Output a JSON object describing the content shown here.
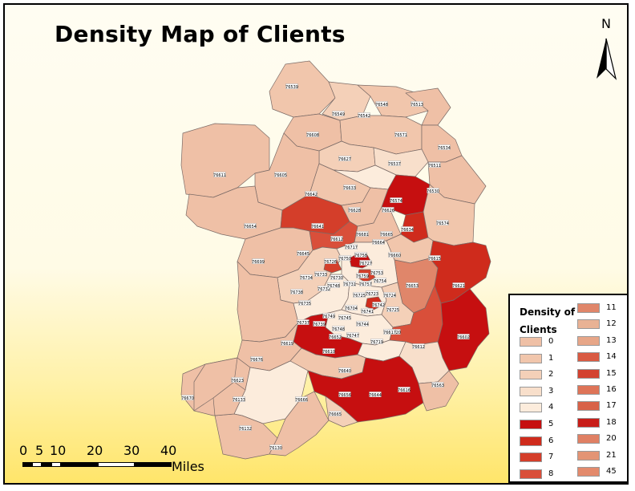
{
  "title": "Density Map of Clients",
  "north": "N",
  "scale": {
    "ticks": [
      "0",
      "5",
      "10",
      "20",
      "30",
      "40"
    ],
    "unit": "Miles"
  },
  "legend": {
    "title": "Density of Clients",
    "items": [
      {
        "label": "0",
        "color": "#efc0a6"
      },
      {
        "label": "1",
        "color": "#f1c6ac"
      },
      {
        "label": "2",
        "color": "#f4d0b8"
      },
      {
        "label": "3",
        "color": "#f8dfcb"
      },
      {
        "label": "4",
        "color": "#fcecdc"
      },
      {
        "label": "5",
        "color": "#c60f10"
      },
      {
        "label": "6",
        "color": "#cf2b1c"
      },
      {
        "label": "7",
        "color": "#d43e2a"
      },
      {
        "label": "8",
        "color": "#d94f3a"
      },
      {
        "label": "11",
        "color": "#e0866a"
      },
      {
        "label": "12",
        "color": "#e9b294"
      },
      {
        "label": "13",
        "color": "#e7a688"
      },
      {
        "label": "14",
        "color": "#d95a42"
      },
      {
        "label": "15",
        "color": "#d34230"
      },
      {
        "label": "16",
        "color": "#de7458"
      },
      {
        "label": "17",
        "color": "#d86248"
      },
      {
        "label": "18",
        "color": "#c81d18"
      },
      {
        "label": "20",
        "color": "#e08064"
      },
      {
        "label": "21",
        "color": "#e39474"
      },
      {
        "label": "45",
        "color": "#e38a6c"
      }
    ]
  },
  "zip_labels": [
    "76539",
    "76549",
    "76542",
    "76548",
    "76513",
    "76608",
    "76571",
    "76534",
    "76627",
    "76537",
    "76511",
    "76611",
    "76605",
    "76642",
    "76633",
    "76530",
    "76574",
    "76628",
    "76574",
    "76626",
    "76654",
    "76641",
    "76681",
    "76665",
    "76634",
    "76612",
    "76645",
    "76717",
    "76664",
    "76615",
    "76699",
    "76726",
    "76750",
    "76758",
    "76727",
    "76660",
    "76734",
    "76733",
    "76730",
    "76759",
    "76753",
    "76653",
    "76621",
    "76738",
    "76732",
    "76731",
    "76757",
    "76754",
    "76735",
    "76748",
    "76723",
    "76724",
    "76620",
    "76725",
    "76741",
    "76742",
    "76749",
    "76745",
    "76704",
    "76725",
    "76737",
    "76739",
    "76748",
    "76744",
    "76617",
    "76652",
    "76747",
    "76602",
    "76619",
    "76610",
    "76719",
    "76612",
    "76676",
    "76640",
    "76623",
    "76563",
    "76666",
    "76656",
    "76644",
    "76616",
    "76670",
    "76133",
    "76665",
    "76132",
    "76130"
  ]
}
